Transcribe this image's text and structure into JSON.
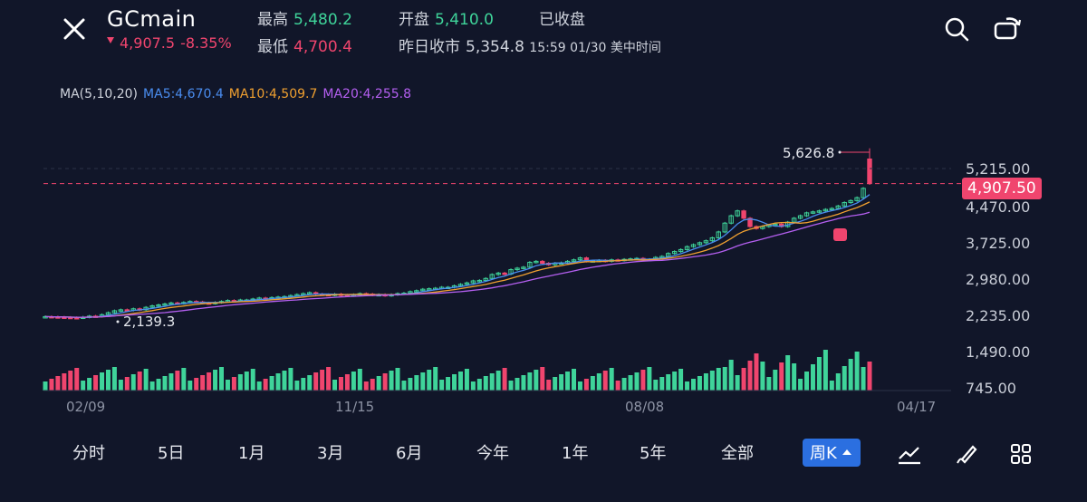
{
  "header": {
    "title": "GCmain",
    "last_price": "4,907.5",
    "change_pct": "-8.35%",
    "high_label": "最高",
    "high_value": "5,480.2",
    "low_label": "最低",
    "low_value": "4,700.4",
    "open_label": "开盘",
    "open_value": "5,410.0",
    "prev_close_label": "昨日收市",
    "prev_close_value": "5,354.8",
    "status": "已收盘",
    "timestamp": "15:59 01/30 美中时间"
  },
  "ma": {
    "label": "MA(5,10,20)",
    "ma5": "MA5:4,670.4",
    "ma10": "MA10:4,509.7",
    "ma20": "MA20:4,255.8",
    "ma5_color": "#4a8df0",
    "ma10_color": "#f0a030",
    "ma20_color": "#b45ff0"
  },
  "chart": {
    "y_ticks": [
      "5,215.00",
      "4,470.00",
      "3,725.00",
      "2,980.00",
      "2,235.00",
      "1,490.00",
      "745.00"
    ],
    "x_ticks": [
      "02/09",
      "11/15",
      "08/08",
      "04/17"
    ],
    "max_annotation": "5,626.8",
    "min_annotation": "2,139.3",
    "current_price_tag": "4,907.50"
  },
  "chart_data": {
    "type": "candlestick",
    "period": "weekly",
    "y_ticks": [
      5215,
      4470,
      3725,
      2980,
      2235
    ],
    "volume_axis_ticks": [
      1490,
      745
    ],
    "x_ticks": [
      "02/09",
      "11/15",
      "08/08",
      "04/17"
    ],
    "high_annotation": 5626.8,
    "low_annotation": 2139.3,
    "last_price": 4907.5,
    "close_series": [
      2190,
      2185,
      2180,
      2175,
      2170,
      2165,
      2180,
      2200,
      2195,
      2230,
      2270,
      2310,
      2330,
      2320,
      2350,
      2330,
      2380,
      2410,
      2430,
      2450,
      2470,
      2460,
      2480,
      2500,
      2490,
      2470,
      2460,
      2480,
      2500,
      2520,
      2510,
      2530,
      2530,
      2550,
      2570,
      2560,
      2580,
      2590,
      2600,
      2620,
      2640,
      2660,
      2680,
      2650,
      2640,
      2630,
      2650,
      2630,
      2620,
      2640,
      2660,
      2650,
      2630,
      2640,
      2620,
      2640,
      2660,
      2670,
      2700,
      2720,
      2750,
      2760,
      2770,
      2790,
      2790,
      2820,
      2850,
      2880,
      2920,
      2930,
      2970,
      3050,
      3080,
      3060,
      3150,
      3180,
      3200,
      3300,
      3320,
      3280,
      3250,
      3280,
      3290,
      3320,
      3350,
      3390,
      3320,
      3330,
      3340,
      3320,
      3350,
      3340,
      3360,
      3370,
      3380,
      3360,
      3360,
      3400,
      3420,
      3480,
      3520,
      3560,
      3620,
      3660,
      3700,
      3740,
      3800,
      3920,
      4100,
      4250,
      4350,
      4200,
      4030,
      3990,
      4030,
      4060,
      4080,
      4030,
      4120,
      4200,
      4250,
      4310,
      4330,
      4350,
      4380,
      4400,
      4450,
      4520,
      4560,
      4620,
      4810,
      4907.5
    ],
    "ma5_last": 4670.4,
    "ma10_last": 4509.7,
    "ma20_last": 4255.8
  },
  "periods": [
    "分时",
    "5日",
    "1月",
    "3月",
    "6月",
    "今年",
    "1年",
    "5年",
    "全部"
  ],
  "active_period": "周K",
  "colors": {
    "up": "#3fd49a",
    "down": "#f0456e",
    "bg": "#111629",
    "active_tab": "#2b6fe0"
  }
}
